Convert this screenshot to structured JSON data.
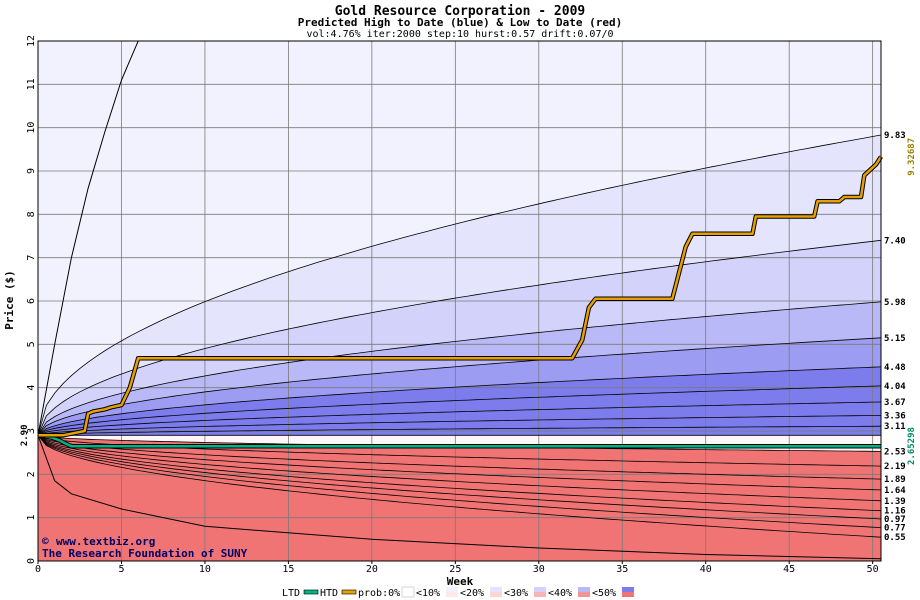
{
  "chart_data": {
    "type": "area",
    "title": "Gold Resource Corporation - 2009",
    "subtitle": "Predicted High to Date (blue) &  Low to Date (red)",
    "params": "vol:4.76% iter:2000 step:10 hurst:0.57 drift:0.07/0",
    "xlabel": "Week",
    "ylabel": "Price ($)",
    "xlim": [
      0,
      50.5
    ],
    "ylim": [
      0,
      12
    ],
    "x_ticks": [
      "0",
      "5",
      "10",
      "15",
      "20",
      "25",
      "30",
      "35",
      "40",
      "45",
      "50"
    ],
    "y_ticks": [
      "0",
      "1",
      "2",
      "3",
      "4",
      "5",
      "6",
      "7",
      "8",
      "9",
      "10",
      "11",
      "12"
    ],
    "start_price": 2.9,
    "start_label": "2.90",
    "credit_lines": [
      "www.textbiz.org",
      "The Research Foundation of SUNY"
    ],
    "copyright_symbol": "©",
    "legend": {
      "ltd": "LTD",
      "htd": "HTD",
      "prob": "prob:0%",
      "bins": [
        "<10%",
        "<20%",
        "<30%",
        "<40%",
        "<50%"
      ]
    },
    "colors": {
      "ltd": "#00b386",
      "htd": "#e8a000",
      "blue_bands": [
        "#f2f2fe",
        "#e4e4fd",
        "#d2d2fb",
        "#b9b9f7",
        "#9c9cf2",
        "#7c7cec"
      ],
      "red_bands": [
        "#fde9e9",
        "#fcd5d5",
        "#f9b6b6",
        "#f69393",
        "#f07474"
      ],
      "right_label_htd": "#9b7f00",
      "right_label_ltd": "#008a66"
    },
    "blue_quantiles": [
      {
        "end": 9.83,
        "label": "9.83"
      },
      {
        "end": 7.4,
        "label": "7.40"
      },
      {
        "end": 5.98,
        "label": "5.98"
      },
      {
        "end": 5.15,
        "label": "5.15"
      },
      {
        "end": 4.48,
        "label": "4.48"
      },
      {
        "end": 4.04,
        "label": "4.04"
      },
      {
        "end": 3.67,
        "label": "3.67"
      },
      {
        "end": 3.36,
        "label": "3.36"
      },
      {
        "end": 3.11,
        "label": "3.11"
      }
    ],
    "red_quantiles": [
      {
        "end": 2.53,
        "label": "2.53"
      },
      {
        "end": 2.19,
        "label": "2.19"
      },
      {
        "end": 1.89,
        "label": "1.89"
      },
      {
        "end": 1.64,
        "label": "1.64"
      },
      {
        "end": 1.39,
        "label": "1.39"
      },
      {
        "end": 1.16,
        "label": "1.16"
      },
      {
        "end": 0.97,
        "label": "0.97"
      },
      {
        "end": 0.77,
        "label": "0.77"
      },
      {
        "end": 0.55,
        "label": "0.55"
      }
    ],
    "upper_envelope": {
      "x": [
        0,
        1,
        2,
        3,
        4,
        5,
        6,
        6.5
      ],
      "y": [
        2.9,
        5.0,
        7.0,
        8.6,
        9.9,
        11.1,
        12.0,
        12.0
      ]
    },
    "lower_envelope": {
      "x": [
        0,
        1,
        2,
        5,
        10,
        20,
        30,
        40,
        50.5
      ],
      "y": [
        2.9,
        1.85,
        1.55,
        1.2,
        0.8,
        0.5,
        0.3,
        0.15,
        0.05
      ]
    },
    "htd_series": {
      "name": "HTD",
      "x": [
        0,
        1.5,
        2.8,
        3.0,
        3.3,
        4.0,
        4.4,
        5.0,
        5.5,
        6.0,
        32.0,
        32.6,
        33.0,
        33.4,
        34.2,
        38.0,
        38.8,
        39.2,
        42.8,
        43.0,
        46.5,
        46.7,
        48.0,
        48.3,
        49.3,
        49.5,
        50.2,
        50.5
      ],
      "y": [
        2.9,
        2.9,
        3.0,
        3.4,
        3.45,
        3.5,
        3.55,
        3.6,
        4.0,
        4.68,
        4.68,
        5.1,
        5.85,
        6.05,
        6.05,
        6.05,
        7.25,
        7.55,
        7.55,
        7.95,
        7.95,
        8.3,
        8.3,
        8.4,
        8.4,
        8.9,
        9.15,
        9.33
      ]
    },
    "ltd_series": {
      "name": "LTD",
      "x": [
        0,
        0.8,
        1.3,
        1.7,
        2.0,
        50.5
      ],
      "y": [
        2.9,
        2.85,
        2.78,
        2.7,
        2.65,
        2.65
      ]
    },
    "htd_end": {
      "value": 9.32687,
      "label": "9.32687"
    },
    "ltd_end": {
      "value": 2.65298,
      "label": "2.65298"
    }
  }
}
